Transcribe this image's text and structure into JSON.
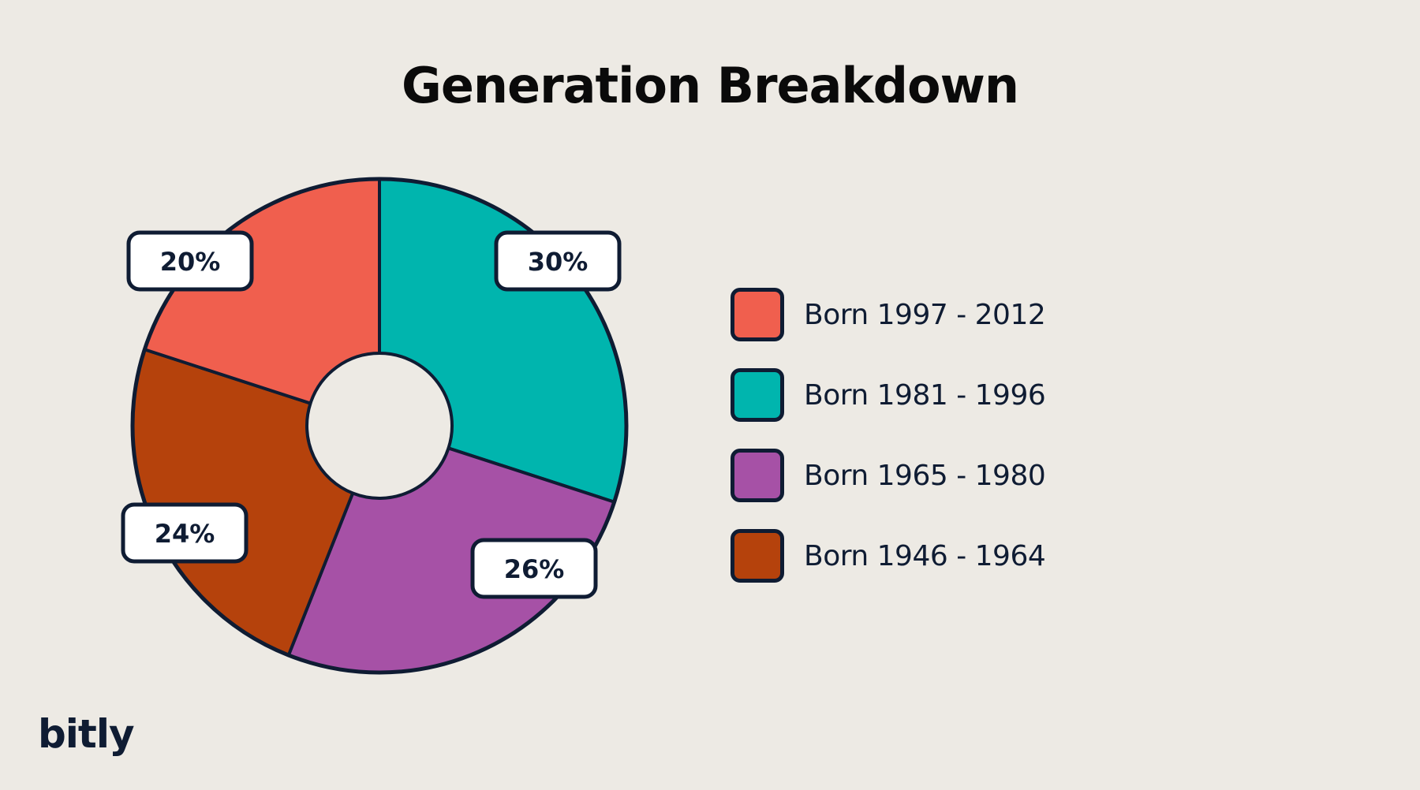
{
  "brand": {
    "logo_text": "bitly"
  },
  "chart_data": {
    "type": "pie",
    "donut": true,
    "title": "Generation Breakdown",
    "categories": [
      "Born 1997 - 2012",
      "Born 1981 - 1996",
      "Born 1965 - 1980",
      "Born 1946 - 1964"
    ],
    "values": [
      20,
      30,
      26,
      24
    ],
    "value_labels": [
      "20%",
      "30%",
      "26%",
      "24%"
    ],
    "colors": [
      "#f05f4e",
      "#00b5ae",
      "#a651a6",
      "#b5420c"
    ],
    "legend": "right"
  }
}
